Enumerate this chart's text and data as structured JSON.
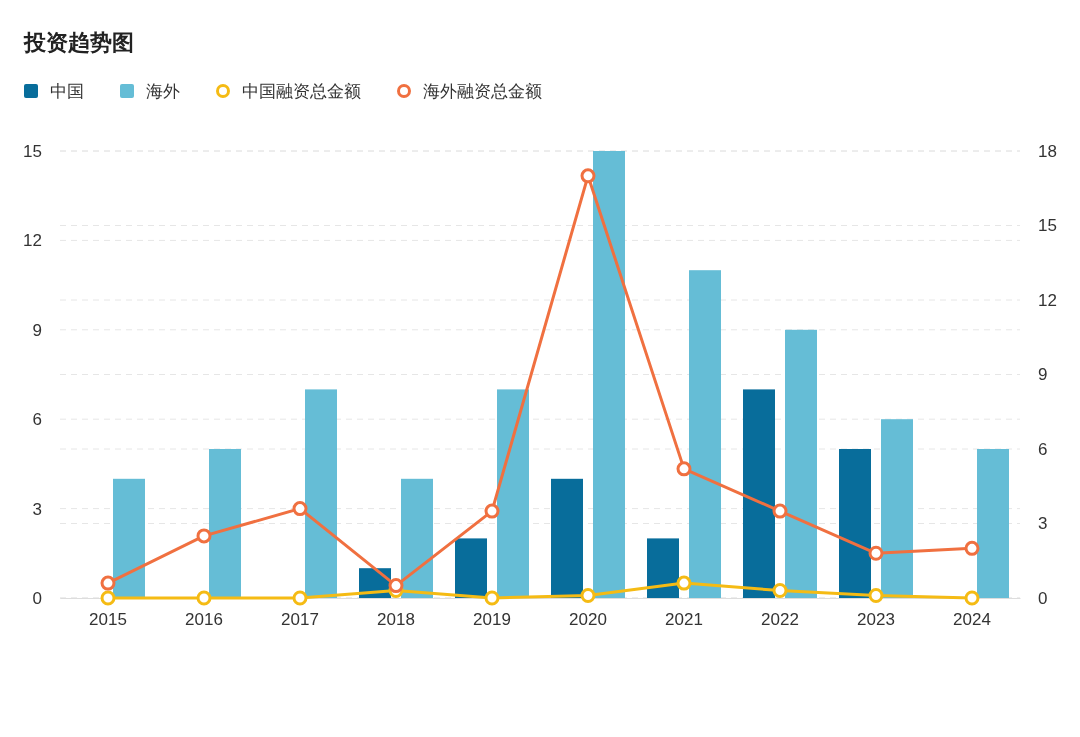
{
  "chart_data": {
    "type": "bar",
    "title": "投资趋势图",
    "categories": [
      "2015",
      "2016",
      "2017",
      "2018",
      "2019",
      "2020",
      "2021",
      "2022",
      "2023",
      "2024"
    ],
    "series": [
      {
        "name": "中国",
        "color": "#086d9b",
        "values": [
          0,
          0,
          0,
          1,
          2,
          4,
          2,
          7,
          5,
          0
        ]
      },
      {
        "name": "海外",
        "color": "#65bdd6",
        "values": [
          4,
          5,
          7,
          4,
          7,
          15,
          11,
          9,
          6,
          5
        ]
      },
      {
        "name": "中国融资总金额",
        "type": "line",
        "axis": "y2",
        "color": "#f5bb14",
        "values": [
          0,
          0,
          0,
          0.3,
          0,
          0.1,
          0.6,
          0.3,
          0.1,
          0
        ]
      },
      {
        "name": "海外融资总金额",
        "type": "line",
        "axis": "y2",
        "color": "#f07040",
        "values": [
          0.6,
          2.5,
          3.6,
          0.5,
          3.5,
          17,
          5.2,
          3.5,
          1.8,
          2.0
        ]
      }
    ],
    "ylim": [
      0,
      15
    ],
    "yticks": [
      0,
      3,
      6,
      9,
      12,
      15
    ],
    "y2lim": [
      0,
      18
    ],
    "y2ticks": [
      0,
      3,
      6,
      9,
      12,
      15,
      18
    ],
    "grid": true,
    "legend": "top left",
    "marker": "circle",
    "line_style": "solid"
  }
}
